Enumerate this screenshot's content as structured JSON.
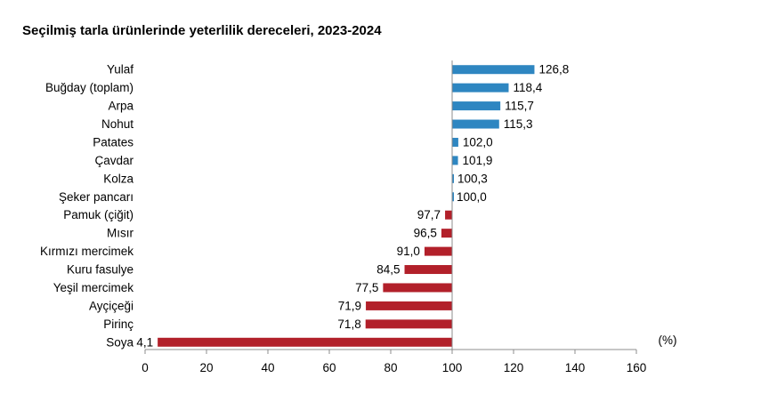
{
  "chart_data": {
    "type": "bar",
    "orientation": "horizontal",
    "title": "Seçilmiş tarla ürünlerinde yeterlilik dereceleri, 2023-2024",
    "unit_label": "(%)",
    "baseline": 100,
    "xlim": [
      0,
      160
    ],
    "xticks": [
      "0",
      "20",
      "40",
      "60",
      "80",
      "100",
      "120",
      "140",
      "160"
    ],
    "grid": false,
    "colors": {
      "above": "#2E86C1",
      "below": "#B2202A"
    },
    "categories": [
      "Yulaf",
      "Buğday (toplam)",
      "Arpa",
      "Nohut",
      "Patates",
      "Çavdar",
      "Kolza",
      "Şeker pancarı",
      "Pamuk (çiğit)",
      "Mısır",
      "Kırmızı mercimek",
      "Kuru fasulye",
      "Yeşil mercimek",
      "Ayçiçeği",
      "Pirinç",
      "Soya"
    ],
    "values": [
      126.8,
      118.4,
      115.7,
      115.3,
      102.0,
      101.9,
      100.3,
      100.0,
      97.7,
      96.5,
      91.0,
      84.5,
      77.5,
      71.9,
      71.8,
      4.1
    ],
    "value_labels": [
      "126,8",
      "118,4",
      "115,7",
      "115,3",
      "102,0",
      "101,9",
      "100,3",
      "100,0",
      "97,7",
      "96,5",
      "91,0",
      "84,5",
      "77,5",
      "71,9",
      "71,8",
      "4,1"
    ]
  }
}
